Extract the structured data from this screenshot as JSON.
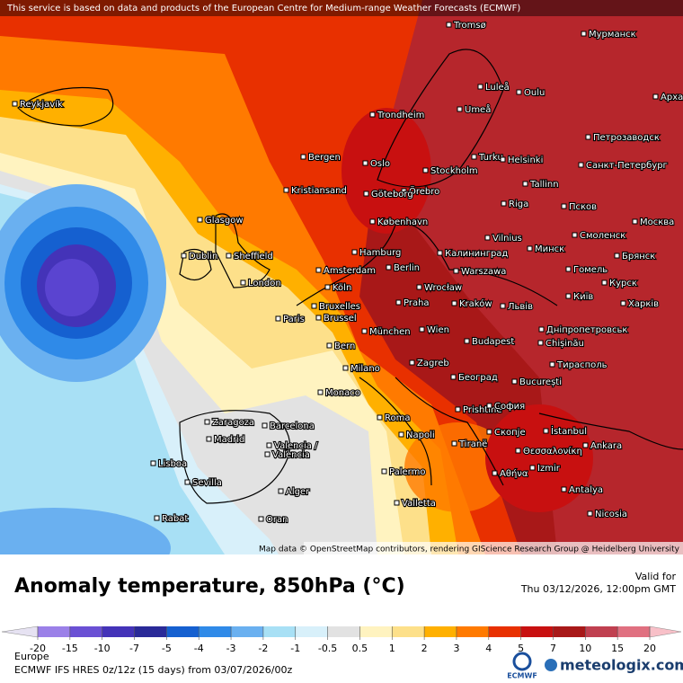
{
  "header": {
    "notice": "This service is based on data and products of the European Centre for Medium-range Weather Forecasts (ECMWF)"
  },
  "map": {
    "cities": [
      "Tromsø",
      "Мурманск",
      "Арха",
      "Reykjavík",
      "Luleå",
      "Oulu",
      "Umeå",
      "Trondheim",
      "Петрозаводск",
      "Turku",
      "Helsinki",
      "Санкт-Петербург",
      "Bergen",
      "Oslo",
      "Stockholm",
      "Örebro",
      "Tallinn",
      "Kristiansand",
      "Göteborg",
      "Riga",
      "Псков",
      "Glasgow",
      "København",
      "Vilnius",
      "Минск",
      "Смоленск",
      "Москва",
      "Dublin",
      "Sheffield",
      "Hamburg",
      "Калининград",
      "Брянск",
      "London",
      "Amsterdam",
      "Berlin",
      "Warszawa",
      "Гомель",
      "Köln",
      "Wrocław",
      "Курск",
      "Paris",
      "Bruxelles",
      "Brussel",
      "Praha",
      "Kraków",
      "Львів",
      "Київ",
      "Харків",
      "München",
      "Wien",
      "Дніпропетровськ",
      "Bern",
      "Budapest",
      "Chișinău",
      "Milano",
      "Zagreb",
      "Тирасполь",
      "Monaco",
      "Београд",
      "București",
      "Zaragoza",
      "Barcelona",
      "Roma",
      "Prishtinë",
      "София",
      "Madrid",
      "Napoli",
      "Скопје",
      "İstanbul",
      "Valencia /",
      "València",
      "Tiranë",
      "Θεσσαλονίκη",
      "Ankara",
      "Lisboa",
      "Izmir",
      "Αθήνα",
      "Palermo",
      "Sevilla",
      "Alger",
      "Valletta",
      "Antalya",
      "Rabat",
      "Oran",
      "Nicosia"
    ],
    "attribution": "Map data © OpenStreetMap contributors, rendering GIScience Research Group @ Heidelberg University"
  },
  "legend": {
    "title": "Anomaly temperature, 850hPa (°C)",
    "valid_label": "Valid for",
    "valid_time": "Thu 03/12/2026, 12:00pm GMT",
    "ticks": [
      -20,
      -15,
      -10,
      -7,
      -5,
      -4,
      -3,
      -2,
      -1,
      -0.5,
      0.5,
      1,
      2,
      3,
      4,
      5,
      7,
      10,
      15,
      20
    ],
    "colors": [
      "#e6e2f2",
      "#9b80e8",
      "#6a50d4",
      "#4433b8",
      "#2a2a98",
      "#1560d0",
      "#2f8ae8",
      "#6ab0f0",
      "#a8e0f5",
      "#d8f0fa",
      "#e2e2e2",
      "#fff3c0",
      "#fde08a",
      "#ffb000",
      "#ff7a00",
      "#e83000",
      "#c81010",
      "#a81818",
      "#c04050",
      "#e07080",
      "#f8c0c8"
    ]
  },
  "footer": {
    "region": "Europe",
    "model": "ECMWF IFS HRES 0z/12z (15 days) from 03/07/2026/00z",
    "ecmwf_logo": "ECMWF",
    "brand": "meteologix.com"
  }
}
